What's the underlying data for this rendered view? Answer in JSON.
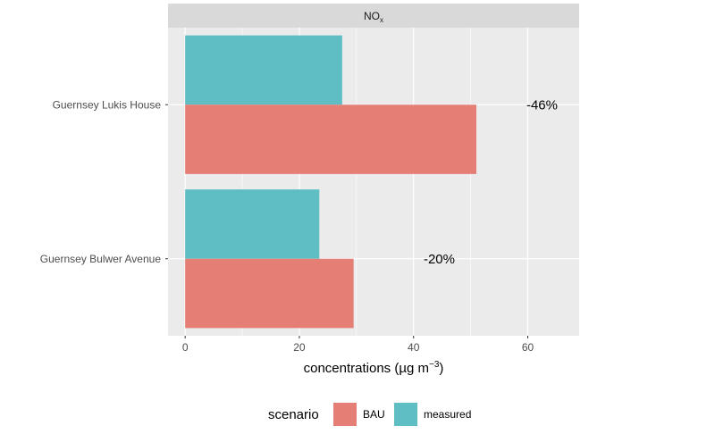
{
  "chart_data": {
    "type": "bar",
    "orientation": "horizontal",
    "panel_title": "NO",
    "panel_title_sub": "x",
    "categories": [
      "Guernsey Lukis House",
      "Guernsey Bulwer Avenue"
    ],
    "series": [
      {
        "name": "measured",
        "values": [
          27.5,
          23.5
        ],
        "color": "#5ebec4"
      },
      {
        "name": "BAU",
        "values": [
          51.0,
          29.5
        ],
        "color": "#e57f75"
      }
    ],
    "annotations": [
      {
        "category": "Guernsey Lukis House",
        "text": "-46%",
        "x": 62.5
      },
      {
        "category": "Guernsey Bulwer Avenue",
        "text": "-20%",
        "x": 44.5
      }
    ],
    "xlabel": "concentrations (µg m",
    "xlabel_sup": "−3",
    "xlabel_end": ")",
    "xlim": [
      -3,
      69
    ],
    "xticks": [
      0,
      20,
      40,
      60
    ],
    "grid": true,
    "legend": {
      "title": "scenario",
      "position": "bottom",
      "items": [
        "BAU",
        "measured"
      ]
    }
  },
  "colors": {
    "panel_bg": "#ebebeb",
    "strip_bg": "#d9d9d9",
    "grid_major": "#ffffff"
  }
}
